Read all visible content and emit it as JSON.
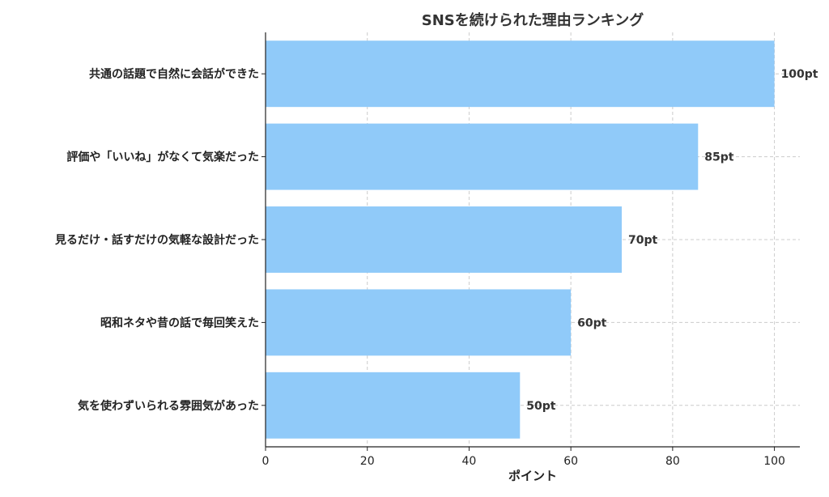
{
  "chart_data": {
    "type": "bar",
    "orientation": "horizontal",
    "title": "SNSを続けられた理由ランキング",
    "xlabel": "ポイント",
    "ylabel": "",
    "categories": [
      "共通の話題で自然に会話ができた",
      "評価や「いいね」がなくて気楽だった",
      "見るだけ・話すだけの気軽な設計だった",
      "昭和ネタや昔の話で毎回笑えた",
      "気を使わずいられる雰囲気があった"
    ],
    "values": [
      100,
      85,
      70,
      60,
      50
    ],
    "value_labels": [
      "100pt",
      "85pt",
      "70pt",
      "60pt",
      "50pt"
    ],
    "xlim": [
      0,
      105
    ],
    "xticks": [
      0,
      20,
      40,
      60,
      80,
      100
    ],
    "grid": true,
    "bar_color": "#90CAF9"
  }
}
